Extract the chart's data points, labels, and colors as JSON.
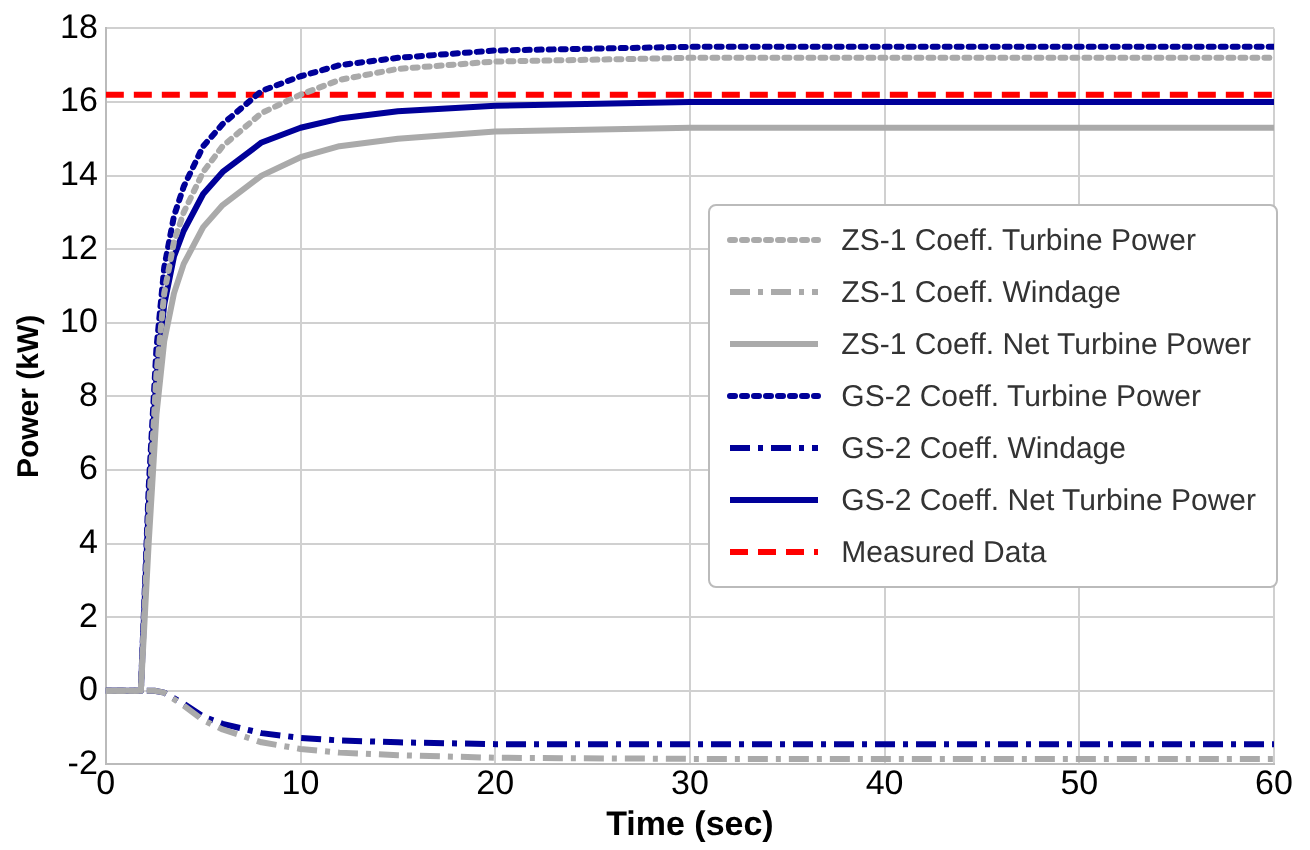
{
  "chart_data": {
    "type": "line",
    "xlabel": "Time (sec)",
    "ylabel": "Power (kW)",
    "xlim": [
      0,
      60
    ],
    "xticks": [
      0,
      10,
      20,
      30,
      40,
      50,
      60
    ],
    "ylim": [
      -2,
      18
    ],
    "yticks": [
      -2,
      0,
      2,
      4,
      6,
      8,
      10,
      12,
      14,
      16,
      18
    ],
    "grid": true,
    "legend": "right",
    "marker": "none",
    "series": [
      {
        "name": "ZS-1 Coeff. Turbine Power",
        "color": "#aaaaaa",
        "line_style": "dotted",
        "x": [
          0,
          1.8,
          2.2,
          2.6,
          3,
          3.5,
          4,
          5,
          6,
          8,
          10,
          12,
          15,
          20,
          30,
          60
        ],
        "values": [
          0,
          0,
          4.8,
          8.6,
          10.8,
          12.2,
          13,
          14.1,
          14.8,
          15.7,
          16.2,
          16.6,
          16.9,
          17.1,
          17.2,
          17.2
        ]
      },
      {
        "name": "ZS-1 Coeff. Windage",
        "color": "#aaaaaa",
        "line_style": "dashdot",
        "x": [
          0,
          2.5,
          3,
          4,
          5,
          6,
          8,
          10,
          12,
          15,
          20,
          30,
          60
        ],
        "values": [
          0,
          0,
          -0.05,
          -0.4,
          -0.8,
          -1.05,
          -1.4,
          -1.58,
          -1.68,
          -1.75,
          -1.82,
          -1.85,
          -1.85
        ]
      },
      {
        "name": "ZS-1 Coeff. Net Turbine Power",
        "color": "#aaaaaa",
        "line_style": "solid",
        "x": [
          0,
          1.8,
          2.2,
          2.6,
          3,
          3.5,
          4,
          5,
          6,
          8,
          10,
          12,
          15,
          20,
          30,
          60
        ],
        "values": [
          0,
          0,
          4,
          7.5,
          9.5,
          10.8,
          11.6,
          12.6,
          13.2,
          14,
          14.5,
          14.8,
          15,
          15.2,
          15.3,
          15.3
        ]
      },
      {
        "name": "GS-2 Coeff. Turbine Power",
        "color": "#000099",
        "line_style": "dotted",
        "x": [
          0,
          1.8,
          2.2,
          2.6,
          3,
          3.5,
          4,
          5,
          6,
          8,
          10,
          12,
          15,
          20,
          30,
          60
        ],
        "values": [
          0,
          0,
          5.5,
          9.3,
          11.5,
          12.9,
          13.7,
          14.8,
          15.4,
          16.3,
          16.7,
          17,
          17.2,
          17.4,
          17.5,
          17.5
        ]
      },
      {
        "name": "GS-2 Coeff. Windage",
        "color": "#000099",
        "line_style": "dashdot",
        "x": [
          0,
          2.5,
          3,
          4,
          5,
          6,
          8,
          10,
          12,
          15,
          20,
          60
        ],
        "values": [
          0,
          0,
          -0.05,
          -0.35,
          -0.7,
          -0.9,
          -1.15,
          -1.28,
          -1.35,
          -1.4,
          -1.45,
          -1.45
        ]
      },
      {
        "name": "GS-2 Coeff. Net Turbine Power",
        "color": "#000099",
        "line_style": "solid",
        "x": [
          0,
          1.8,
          2.2,
          2.6,
          3,
          3.5,
          4,
          5,
          6,
          8,
          10,
          12,
          15,
          20,
          30,
          60
        ],
        "values": [
          0,
          0,
          5,
          8.5,
          10.5,
          11.8,
          12.5,
          13.5,
          14.1,
          14.9,
          15.3,
          15.55,
          15.75,
          15.9,
          16,
          16
        ]
      },
      {
        "name": "Measured Data",
        "color": "#ff0000",
        "line_style": "dashed",
        "x": [
          0,
          60
        ],
        "values": [
          16.2,
          16.2
        ]
      }
    ]
  }
}
